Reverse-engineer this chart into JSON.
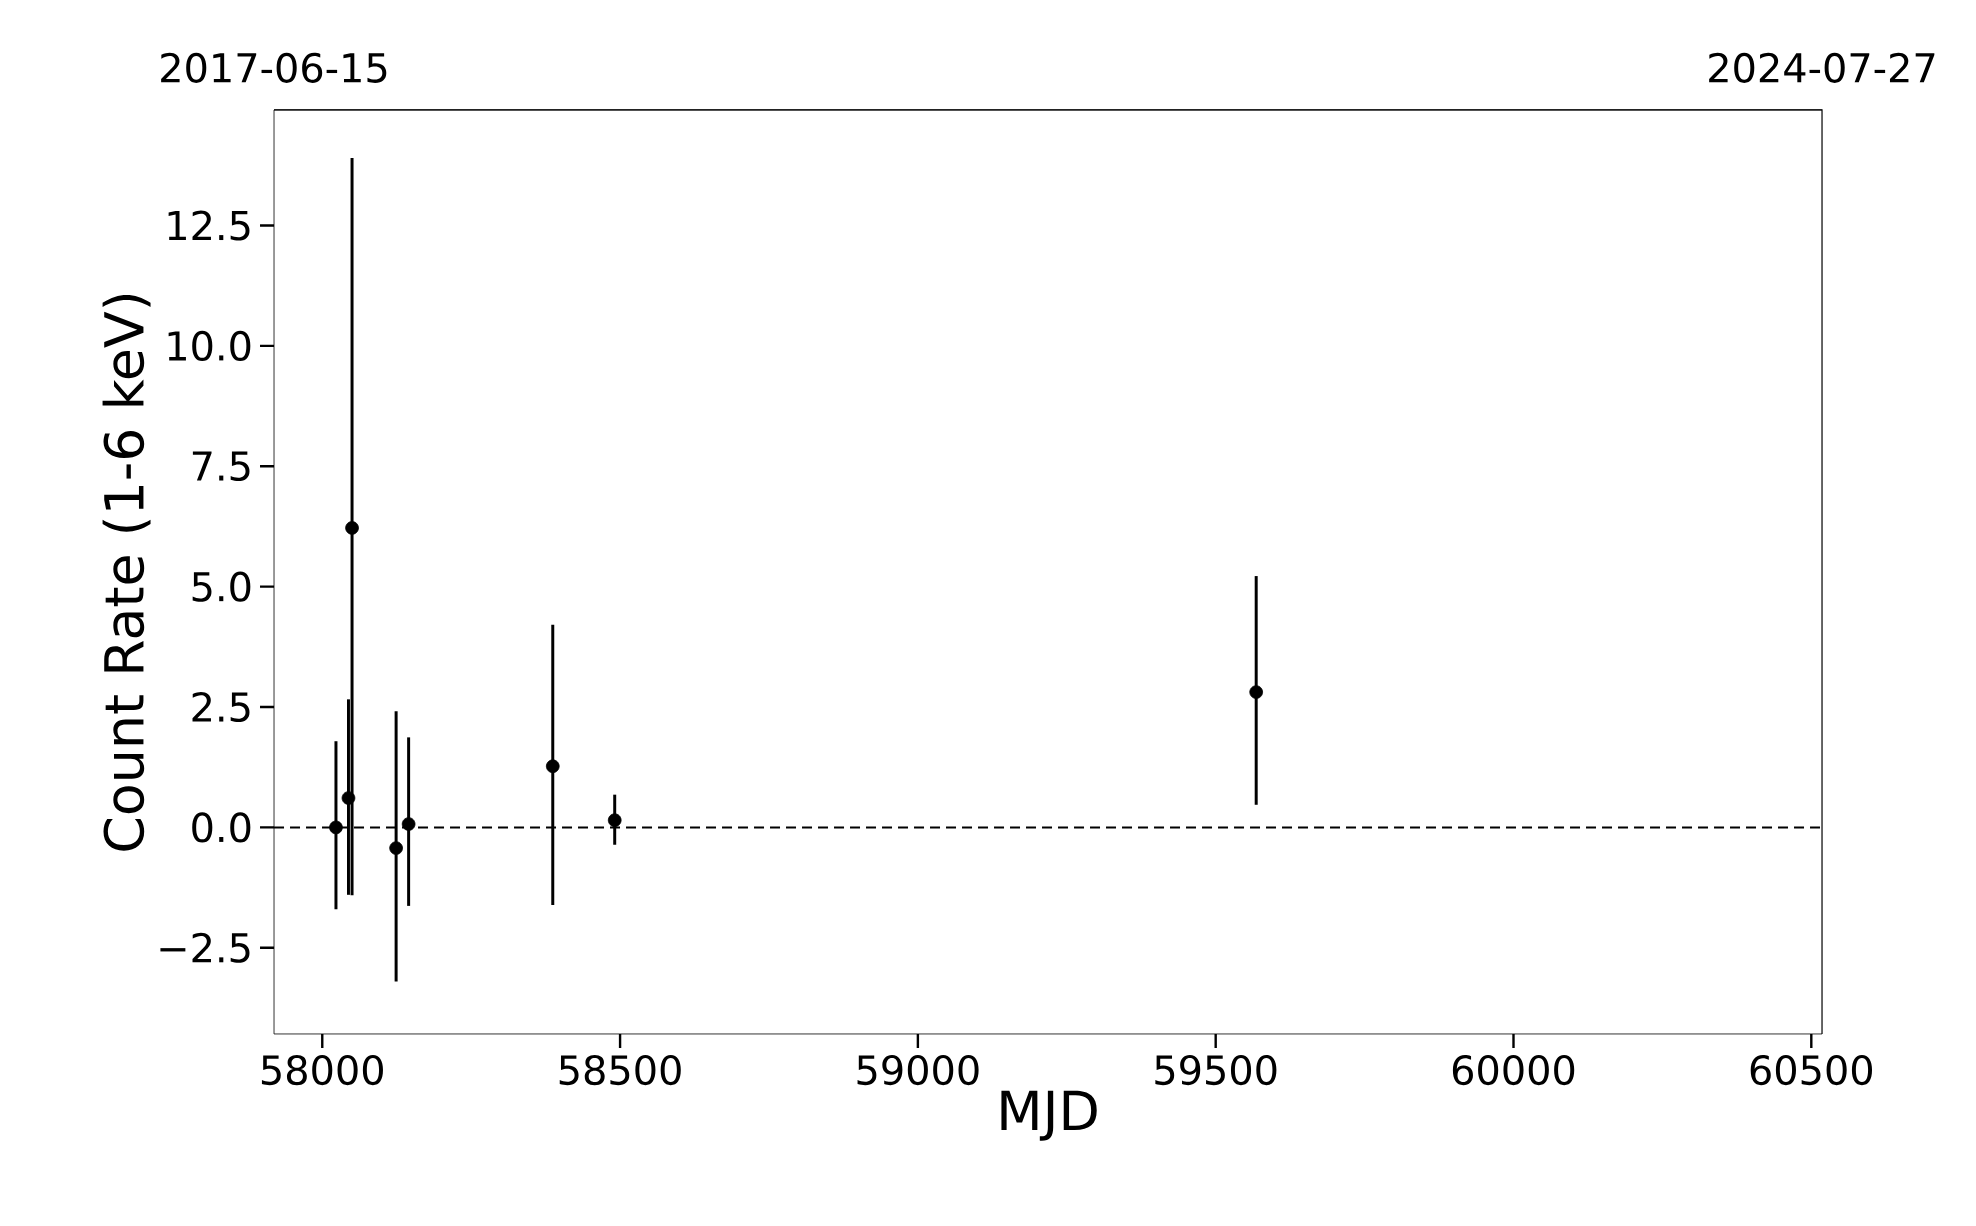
{
  "chart_data": {
    "type": "scatter",
    "xlabel": "MJD",
    "ylabel": "Count Rate (1-6 keV)",
    "x": [
      58023,
      58044,
      58050,
      58124,
      58145,
      58387,
      58491,
      59568
    ],
    "values": [
      0.0,
      0.61,
      6.22,
      -0.43,
      0.07,
      1.27,
      0.15,
      2.81
    ],
    "errors": [
      [
        -1.7,
        1.79
      ],
      [
        -1.4,
        2.66
      ],
      [
        -1.41,
        13.9
      ],
      [
        -3.2,
        2.41
      ],
      [
        -1.63,
        1.87
      ],
      [
        -1.61,
        4.21
      ],
      [
        -0.36,
        0.68
      ],
      [
        0.47,
        5.22
      ]
    ],
    "color": "#000000",
    "marker": "circle",
    "xlim": [
      57919,
      60518
    ],
    "ylim": [
      -4.29,
      14.9
    ],
    "xticks": [
      58000,
      58500,
      59000,
      59500,
      60000,
      60500
    ],
    "yticks": [
      {
        "value": -2.5,
        "label": "−2.5"
      },
      {
        "value": 0,
        "label": "0.0"
      },
      {
        "value": 2.5,
        "label": "2.5"
      },
      {
        "value": 5,
        "label": "5.0"
      },
      {
        "value": 7.5,
        "label": "7.5"
      },
      {
        "value": 10,
        "label": "10.0"
      },
      {
        "value": 12.5,
        "label": "12.5"
      }
    ],
    "x2lim": [
      "2017-06-15",
      "2024-07-27"
    ],
    "x2ticks": [
      "2017-06-15",
      "2024-07-27"
    ],
    "ref_lines": [
      {
        "axis": "y",
        "value": 0,
        "color": "#000000",
        "line_style": "dashed"
      }
    ],
    "grid": false
  }
}
